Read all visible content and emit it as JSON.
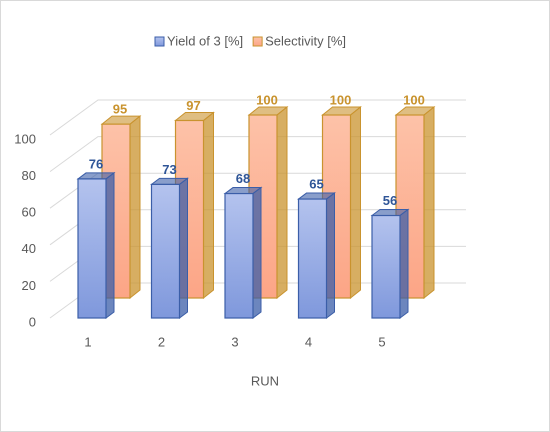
{
  "chart_data": {
    "type": "bar3d",
    "xlabel": "RUN",
    "categories": [
      "1",
      "2",
      "3",
      "4",
      "5"
    ],
    "series": [
      {
        "name": "Yield of 3 [%]",
        "color": "#8fa6e0",
        "edge": "#3b5ea8",
        "label_color": "#2f5597",
        "values": [
          76,
          73,
          68,
          65,
          56
        ]
      },
      {
        "name": "Selectivity [%]",
        "color": "#fdb496",
        "edge": "#c9932e",
        "label_color": "#c9932e",
        "values": [
          95,
          97,
          100,
          100,
          100
        ]
      }
    ],
    "ylim": [
      0,
      100
    ],
    "yticks": [
      0,
      20,
      40,
      60,
      80,
      100
    ],
    "grid": true,
    "legend": "top"
  }
}
